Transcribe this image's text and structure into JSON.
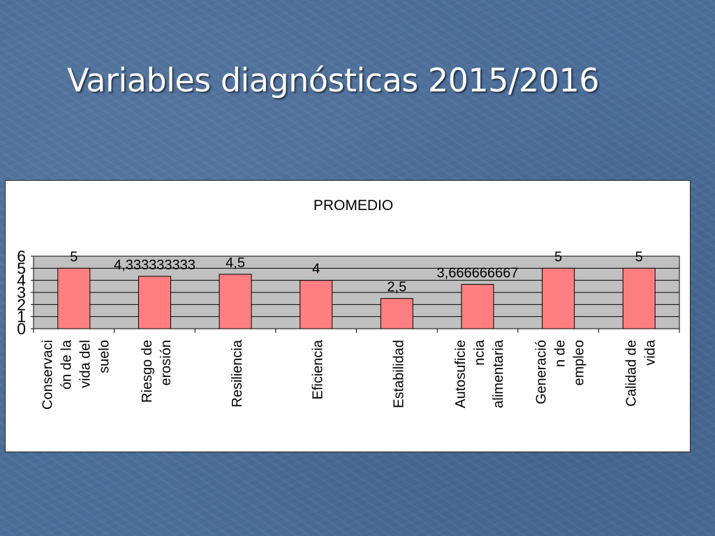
{
  "slide": {
    "title": "Variables diagnósticas 2015/2016"
  },
  "colors": {
    "background": "#4a6d99",
    "bar_fill": "#ff7f80",
    "plot_area": "#c0c0c0"
  },
  "chart_data": {
    "type": "bar",
    "title": "PROMEDIO",
    "xlabel": "",
    "ylabel": "",
    "ylim": [
      0,
      6
    ],
    "y_ticks": [
      "0",
      "1",
      "2",
      "3",
      "4",
      "5",
      "6"
    ],
    "grid": true,
    "categories": [
      [
        "Conservaci",
        "ón de la",
        "vida del",
        "suelo"
      ],
      [
        "Riesgo de",
        "erosión"
      ],
      [
        "Resiliencia"
      ],
      [
        "Eficiencia"
      ],
      [
        "Estabilidad"
      ],
      [
        "Autosuficie",
        "ncia",
        "alimentaria"
      ],
      [
        "Generació",
        "n de",
        "empleo"
      ],
      [
        "Calidad de",
        "vida"
      ]
    ],
    "values": [
      5,
      4.333333333,
      4.5,
      4,
      2.5,
      3.666666667,
      5,
      5
    ],
    "data_labels": [
      "5",
      "4,333333333",
      "4,5",
      "4",
      "2,5",
      "3,666666667",
      "5",
      "5"
    ]
  }
}
